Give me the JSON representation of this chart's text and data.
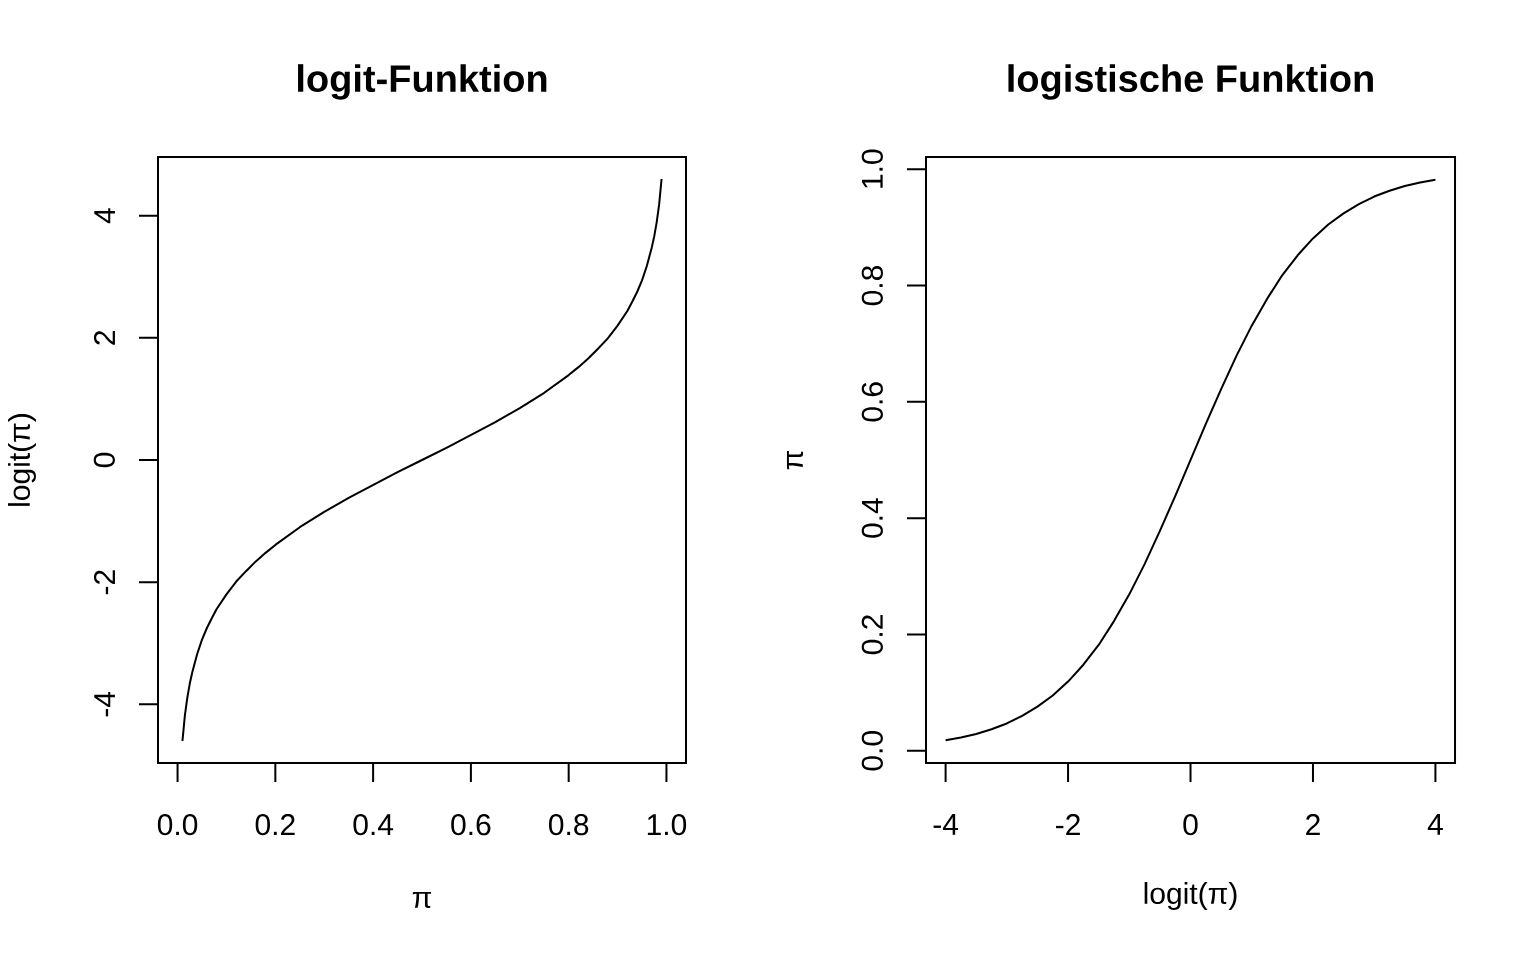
{
  "chart_data": [
    {
      "type": "line",
      "title": "logit-Funktion",
      "xlabel": "π",
      "ylabel": "logit(π)",
      "x": [
        0.01,
        0.015,
        0.02,
        0.025,
        0.03,
        0.04,
        0.05,
        0.06,
        0.07,
        0.08,
        0.1,
        0.12,
        0.14,
        0.16,
        0.18,
        0.2,
        0.25,
        0.3,
        0.35,
        0.4,
        0.45,
        0.5,
        0.55,
        0.6,
        0.65,
        0.7,
        0.75,
        0.8,
        0.82,
        0.84,
        0.86,
        0.88,
        0.9,
        0.92,
        0.93,
        0.94,
        0.95,
        0.96,
        0.97,
        0.975,
        0.98,
        0.985,
        0.99
      ],
      "series": [
        {
          "color": "#000000",
          "values": [
            -4.6,
            -4.18,
            -3.89,
            -3.66,
            -3.48,
            -3.18,
            -2.94,
            -2.75,
            -2.59,
            -2.44,
            -2.2,
            -1.99,
            -1.82,
            -1.66,
            -1.52,
            -1.39,
            -1.1,
            -0.85,
            -0.62,
            -0.41,
            -0.2,
            0,
            0.2,
            0.41,
            0.62,
            0.85,
            1.1,
            1.39,
            1.52,
            1.66,
            1.82,
            1.99,
            2.2,
            2.44,
            2.59,
            2.75,
            2.94,
            3.18,
            3.48,
            3.66,
            3.89,
            4.18,
            4.6
          ]
        }
      ],
      "xlim": [
        -0.04,
        1.04
      ],
      "ylim": [
        -4.96,
        4.96
      ],
      "xticks": [
        {
          "value": 0,
          "label": "0.0"
        },
        0.2,
        0.4,
        0.6,
        0.8,
        {
          "value": 1,
          "label": "1.0"
        }
      ],
      "yticks": [
        -4,
        -2,
        0,
        2,
        4
      ]
    },
    {
      "type": "line",
      "title": "logistische Funktion",
      "xlabel": "logit(π)",
      "ylabel": "π",
      "x": [
        -4,
        -3.75,
        -3.5,
        -3.25,
        -3,
        -2.75,
        -2.5,
        -2.25,
        -2,
        -1.75,
        -1.5,
        -1.25,
        -1,
        -0.75,
        -0.5,
        -0.25,
        0,
        0.25,
        0.5,
        0.75,
        1,
        1.25,
        1.5,
        1.75,
        2,
        2.25,
        2.5,
        2.75,
        3,
        3.25,
        3.5,
        3.75,
        4
      ],
      "series": [
        {
          "color": "#000000",
          "values": [
            0.018,
            0.023,
            0.029,
            0.037,
            0.047,
            0.06,
            0.076,
            0.095,
            0.119,
            0.148,
            0.182,
            0.223,
            0.269,
            0.321,
            0.378,
            0.438,
            0.5,
            0.562,
            0.622,
            0.679,
            0.731,
            0.777,
            0.818,
            0.852,
            0.881,
            0.905,
            0.924,
            0.94,
            0.953,
            0.963,
            0.971,
            0.977,
            0.982
          ]
        }
      ],
      "xlim": [
        -4.32,
        4.32
      ],
      "ylim": [
        -0.021,
        1.021
      ],
      "xticks": [
        -4,
        -2,
        0,
        2,
        4
      ],
      "yticks": [
        {
          "value": 0,
          "label": "0.0"
        },
        0.2,
        0.4,
        0.6,
        0.8,
        {
          "value": 1,
          "label": "1.0"
        }
      ]
    }
  ]
}
